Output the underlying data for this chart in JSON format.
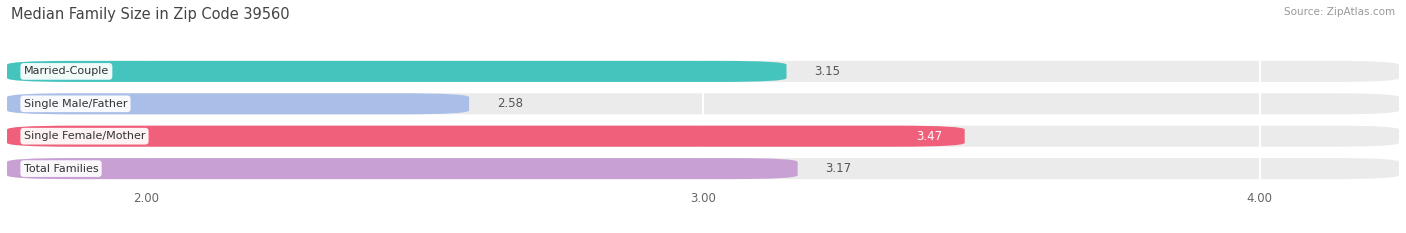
{
  "title": "Median Family Size in Zip Code 39560",
  "source": "Source: ZipAtlas.com",
  "categories": [
    "Married-Couple",
    "Single Male/Father",
    "Single Female/Mother",
    "Total Families"
  ],
  "values": [
    3.15,
    2.58,
    3.47,
    3.17
  ],
  "bar_colors": [
    "#45C4BE",
    "#AABFE8",
    "#F0607A",
    "#C8A0D4"
  ],
  "xlim_left": 1.75,
  "xlim_right": 4.25,
  "data_min": 0.0,
  "xticks": [
    2.0,
    3.0,
    4.0
  ],
  "xtick_labels": [
    "2.00",
    "3.00",
    "4.00"
  ],
  "label_fontsize": 8.0,
  "value_fontsize": 8.5,
  "title_fontsize": 10.5,
  "source_fontsize": 7.5,
  "background_color": "#ffffff",
  "bar_bg_color": "#ebebeb",
  "bar_height": 0.65,
  "bar_gap": 0.35,
  "value_inside_idx": 2,
  "value_inside_color": "#ffffff",
  "value_outside_color": "#555555"
}
